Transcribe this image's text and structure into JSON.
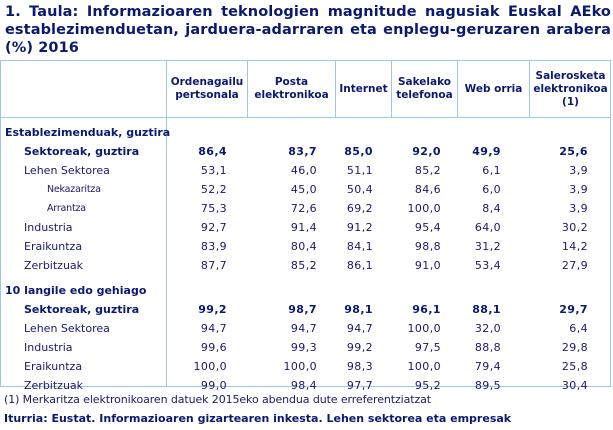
{
  "title": "1. Taula: Informazioaren teknologien magnitude nagusiak Euskal AEko establezimenduetan, jarduera-adarraren eta enplegu-geruzaren arabera (%) 2016",
  "table": {
    "columns": [
      "Ordenagailu pertsonala",
      "Posta elektronikoa",
      "Internet",
      "Sakelako telefonoa",
      "Web orria",
      "Salerosketa elektronikoa (1)"
    ],
    "rows": [
      {
        "label": "Establezimenduak, guztira",
        "type": "group",
        "values": []
      },
      {
        "label": "Sektoreak, guztira",
        "type": "total",
        "values": [
          "86,4",
          "83,7",
          "85,0",
          "92,0",
          "49,9",
          "25,6"
        ]
      },
      {
        "label": "Lehen Sektorea",
        "type": "item",
        "values": [
          "53,1",
          "46,0",
          "51,1",
          "85,2",
          "6,1",
          "3,9"
        ]
      },
      {
        "label": "Nekazaritza",
        "type": "subitem",
        "values": [
          "52,2",
          "45,0",
          "50,4",
          "84,6",
          "6,0",
          "3,9"
        ]
      },
      {
        "label": "Arrantza",
        "type": "subitem",
        "values": [
          "75,3",
          "72,6",
          "69,2",
          "100,0",
          "8,4",
          "3,9"
        ]
      },
      {
        "label": "Industria",
        "type": "item",
        "values": [
          "92,7",
          "91,4",
          "91,2",
          "95,4",
          "64,0",
          "30,2"
        ]
      },
      {
        "label": "Eraikuntza",
        "type": "item",
        "values": [
          "83,9",
          "80,4",
          "84,1",
          "98,8",
          "31,2",
          "14,2"
        ]
      },
      {
        "label": "Zerbitzuak",
        "type": "item",
        "values": [
          "87,7",
          "85,2",
          "86,1",
          "91,0",
          "53,4",
          "27,9"
        ]
      },
      {
        "label": "10 langile edo gehiago",
        "type": "group",
        "values": []
      },
      {
        "label": "Sektoreak, guztira",
        "type": "total",
        "values": [
          "99,2",
          "98,7",
          "98,1",
          "96,1",
          "88,1",
          "29,7"
        ]
      },
      {
        "label": "Lehen Sektorea",
        "type": "item",
        "values": [
          "94,7",
          "94,7",
          "94,7",
          "100,0",
          "32,0",
          "6,4"
        ]
      },
      {
        "label": "Industria",
        "type": "item",
        "values": [
          "99,6",
          "99,3",
          "99,2",
          "97,5",
          "88,8",
          "29,8"
        ]
      },
      {
        "label": "Eraikuntza",
        "type": "item",
        "values": [
          "100,0",
          "100,0",
          "98,3",
          "100,0",
          "79,4",
          "25,8"
        ]
      },
      {
        "label": "Zerbitzuak",
        "type": "item",
        "values": [
          "99,0",
          "98,4",
          "97,7",
          "95,2",
          "89,5",
          "30,4"
        ]
      }
    ]
  },
  "footnote": "(1) Merkaritza elektronikoaren datuek 2015eko abendua dute erreferentziatzat",
  "source": "Iturria: Eustat. Informazioaren gizartearen inkesta. Lehen sektorea eta empresak",
  "colors": {
    "title": "#0a1a6e",
    "text": "#1a1a66",
    "border": "#9cc6ea"
  }
}
